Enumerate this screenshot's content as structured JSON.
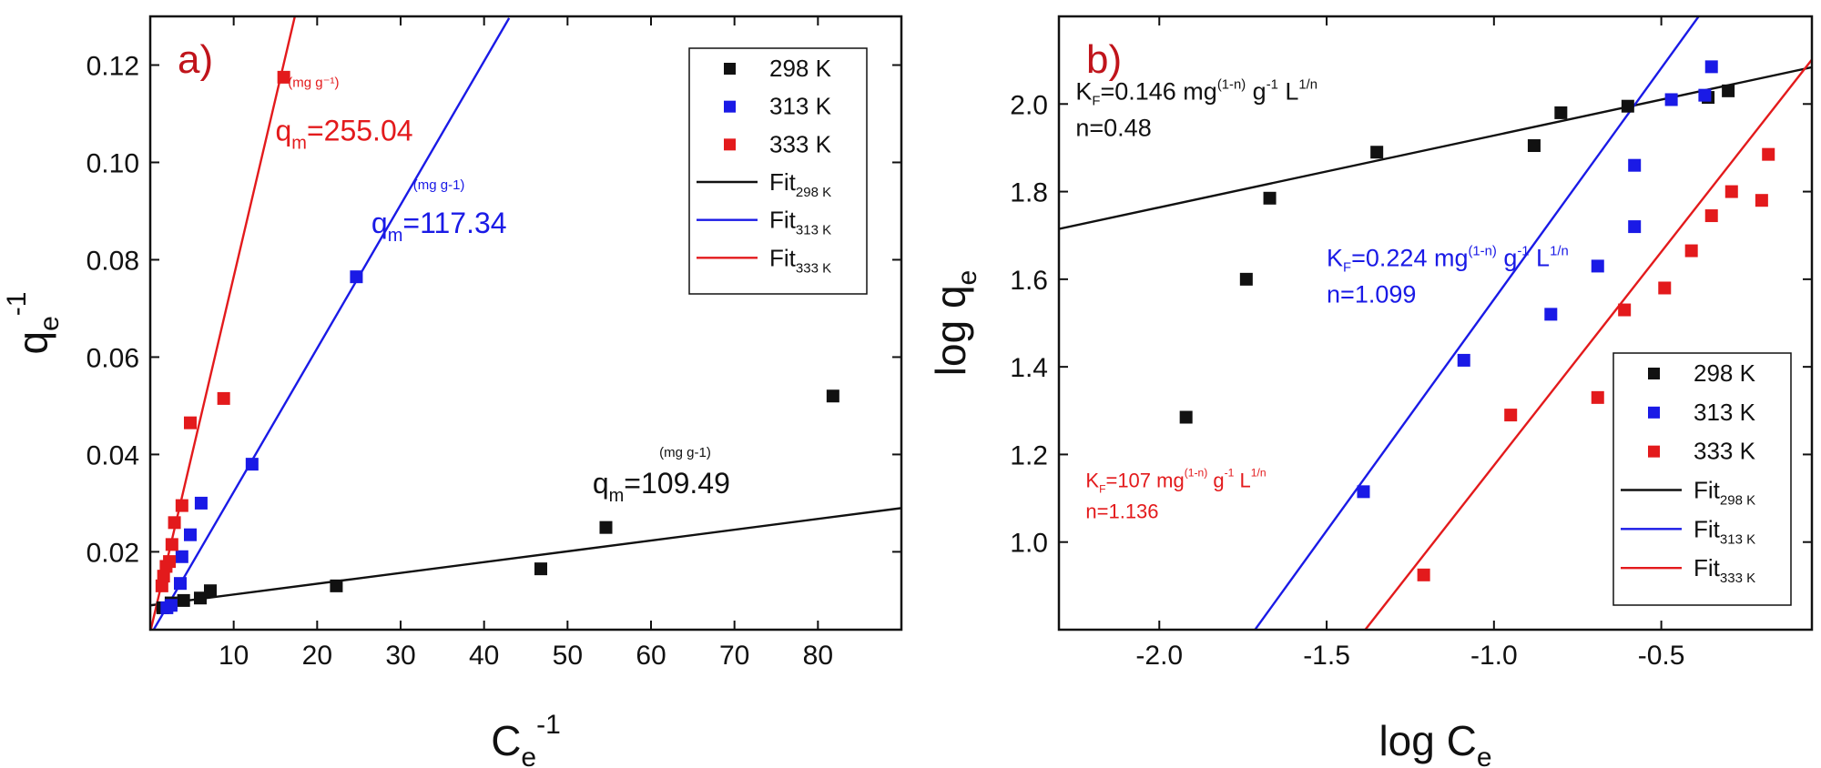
{
  "colors": {
    "s298": "#111111",
    "s313": "#1a1ae6",
    "s333": "#e31a1c",
    "panel_label": "#c0141b"
  },
  "chart_data": [
    {
      "id": "a",
      "type": "scatter",
      "panel_label": "a)",
      "xlabel": "C",
      "xlabel_sub": "e",
      "xlabel_sup": "-1",
      "ylabel": "q",
      "ylabel_sub": "e",
      "ylabel_sup": "-1",
      "xlim": [
        0,
        90
      ],
      "ylim": [
        0.004,
        0.13
      ],
      "xticks": [
        10,
        20,
        30,
        40,
        50,
        60,
        70,
        80
      ],
      "xtick_labels": [
        "10",
        "20",
        "30",
        "40",
        "50",
        "60",
        "70",
        "80"
      ],
      "yticks": [
        0.02,
        0.04,
        0.06,
        0.08,
        0.1,
        0.12
      ],
      "ytick_labels": [
        "0.02",
        "0.04",
        "0.06",
        "0.08",
        "0.10",
        "0.12"
      ],
      "legend_position": "top-right",
      "series": [
        {
          "name": "298 K",
          "color": "#111111",
          "points": [
            [
              1.5,
              0.0085
            ],
            [
              2.5,
              0.0095
            ],
            [
              4.0,
              0.01
            ],
            [
              6.0,
              0.0105
            ],
            [
              7.2,
              0.012
            ],
            [
              22.3,
              0.013
            ],
            [
              46.8,
              0.0165
            ],
            [
              54.6,
              0.025
            ],
            [
              81.8,
              0.052
            ]
          ]
        },
        {
          "name": "313 K",
          "color": "#1a1ae6",
          "points": [
            [
              2.0,
              0.0085
            ],
            [
              2.5,
              0.009
            ],
            [
              3.6,
              0.0135
            ],
            [
              3.8,
              0.019
            ],
            [
              4.8,
              0.0235
            ],
            [
              6.1,
              0.03
            ],
            [
              12.2,
              0.038
            ],
            [
              24.7,
              0.0765
            ]
          ]
        },
        {
          "name": "333 K",
          "color": "#e31a1c",
          "points": [
            [
              1.4,
              0.013
            ],
            [
              1.6,
              0.015
            ],
            [
              1.9,
              0.017
            ],
            [
              2.3,
              0.018
            ],
            [
              2.6,
              0.0215
            ],
            [
              2.9,
              0.026
            ],
            [
              3.8,
              0.0295
            ],
            [
              4.8,
              0.0465
            ],
            [
              8.8,
              0.0515
            ],
            [
              16.0,
              0.1175
            ]
          ]
        }
      ],
      "fits": [
        {
          "name": "Fit",
          "name_sub": "298 K",
          "color": "#111111",
          "slope": 0.000222,
          "intercept": 0.009,
          "x_range": [
            0,
            90
          ]
        },
        {
          "name": "Fit",
          "name_sub": "313 K",
          "color": "#1a1ae6",
          "slope": 0.00295,
          "intercept": 0.0028,
          "x_range": [
            0,
            43
          ]
        },
        {
          "name": "Fit",
          "name_sub": "333 K",
          "color": "#e31a1c",
          "slope": 0.0073,
          "intercept": 0.0035,
          "x_range": [
            0,
            19
          ]
        }
      ],
      "annotations": [
        {
          "color": "#e31a1c",
          "main": "q",
          "sub": "m",
          "value": "=255.04",
          "unit": "(mg g⁻¹)",
          "at": [
            15.0,
            0.1045
          ],
          "unit_at": [
            16.5,
            0.1155
          ]
        },
        {
          "color": "#1a1ae6",
          "main": "q",
          "sub": "m",
          "value": "=117.34",
          "unit": "(mg g-1)",
          "at": [
            26.5,
            0.0855
          ],
          "unit_at": [
            31.5,
            0.0945
          ]
        },
        {
          "color": "#111111",
          "main": "q",
          "sub": "m",
          "value": "=109.49",
          "unit": "(mg g-1)",
          "at": [
            53.0,
            0.032
          ],
          "unit_at": [
            61.0,
            0.0395
          ]
        }
      ]
    },
    {
      "id": "b",
      "type": "scatter",
      "panel_label": "b)",
      "xlabel": "log C",
      "xlabel_sub": "e",
      "ylabel": "log q",
      "ylabel_sub": "e",
      "xlim": [
        -2.3,
        -0.05
      ],
      "ylim": [
        0.8,
        2.2
      ],
      "xticks": [
        -2.0,
        -1.5,
        -1.0,
        -0.5
      ],
      "xtick_labels": [
        "-2.0",
        "-1.5",
        "-1.0",
        "-0.5"
      ],
      "yticks": [
        1.0,
        1.2,
        1.4,
        1.6,
        1.8,
        2.0
      ],
      "ytick_labels": [
        "1.0",
        "1.2",
        "1.4",
        "1.6",
        "1.8",
        "2.0"
      ],
      "legend_position": "bottom-right",
      "series": [
        {
          "name": "298 K",
          "color": "#111111",
          "points": [
            [
              -1.92,
              1.285
            ],
            [
              -1.74,
              1.6
            ],
            [
              -1.67,
              1.785
            ],
            [
              -1.35,
              1.89
            ],
            [
              -0.88,
              1.905
            ],
            [
              -0.8,
              1.98
            ],
            [
              -0.6,
              1.995
            ],
            [
              -0.36,
              2.015
            ],
            [
              -0.3,
              2.03
            ]
          ]
        },
        {
          "name": "313 K",
          "color": "#1a1ae6",
          "points": [
            [
              -1.39,
              1.115
            ],
            [
              -1.09,
              1.415
            ],
            [
              -0.83,
              1.52
            ],
            [
              -0.69,
              1.63
            ],
            [
              -0.58,
              1.72
            ],
            [
              -0.58,
              1.86
            ],
            [
              -0.47,
              2.01
            ],
            [
              -0.37,
              2.02
            ],
            [
              -0.35,
              2.085
            ]
          ]
        },
        {
          "name": "333 K",
          "color": "#e31a1c",
          "points": [
            [
              -1.21,
              0.925
            ],
            [
              -0.95,
              1.29
            ],
            [
              -0.69,
              1.33
            ],
            [
              -0.61,
              1.53
            ],
            [
              -0.49,
              1.58
            ],
            [
              -0.41,
              1.665
            ],
            [
              -0.35,
              1.745
            ],
            [
              -0.29,
              1.8
            ],
            [
              -0.2,
              1.78
            ],
            [
              -0.18,
              1.885
            ]
          ]
        }
      ],
      "fits": [
        {
          "name": "Fit",
          "name_sub": "298 K",
          "color": "#111111",
          "slope": 0.164,
          "intercept": 2.092,
          "x_range": [
            -2.3,
            -0.05
          ]
        },
        {
          "name": "Fit",
          "name_sub": "313 K",
          "color": "#1a1ae6",
          "slope": 1.056,
          "intercept": 2.61,
          "x_range": [
            -1.73,
            -0.25
          ]
        },
        {
          "name": "Fit",
          "name_sub": "333 K",
          "color": "#e31a1c",
          "slope": 0.975,
          "intercept": 2.15,
          "x_range": [
            -1.39,
            -0.05
          ]
        }
      ],
      "annotations": [
        {
          "color": "#111111",
          "lines": [
            {
              "main": "K",
              "sub": "F",
              "text": "=0.146 mg",
              "sup1": "(1-n)",
              "text2": " g",
              "sup2": "-1",
              "text3": " L",
              "sup3": "1/n"
            },
            {
              "plain": "n=0.48"
            }
          ],
          "at": [
            -2.25,
            2.01
          ],
          "size": "mid"
        },
        {
          "color": "#1a1ae6",
          "lines": [
            {
              "main": "K",
              "sub": "F",
              "text": "=0.224 mg",
              "sup1": "(1-n)",
              "text2": " g",
              "sup2": "-1",
              "text3": " L",
              "sup3": "1/n"
            },
            {
              "plain": "n=1.099"
            }
          ],
          "at": [
            -1.5,
            1.63
          ],
          "size": "mid"
        },
        {
          "color": "#e31a1c",
          "lines": [
            {
              "main": "K",
              "sub": "F",
              "text": "=107 mg",
              "sup1": "(1-n)",
              "text2": " g",
              "sup2": "-1",
              "text3": " L",
              "sup3": "1/n"
            },
            {
              "plain": "n=1.136"
            }
          ],
          "at": [
            -2.22,
            1.125
          ],
          "size": "small"
        }
      ]
    }
  ]
}
